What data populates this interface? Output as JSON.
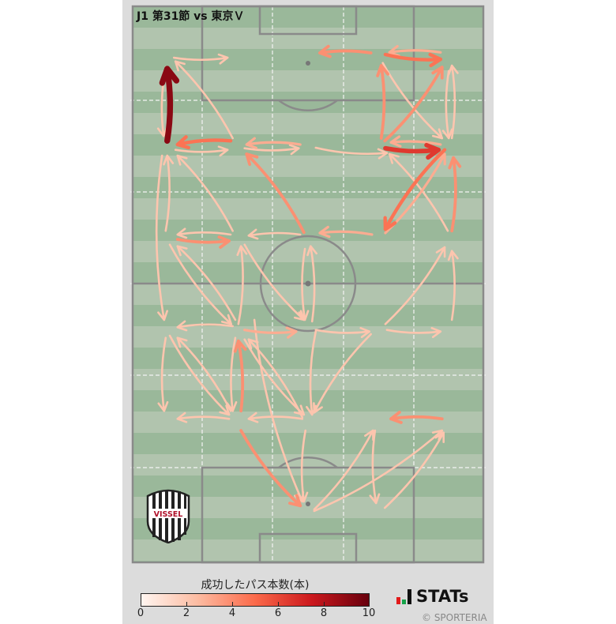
{
  "title": "J1 第31節 vs 東京Ｖ",
  "legend": {
    "title": "成功したパス本数(本)",
    "ticks": [
      "0",
      "2",
      "4",
      "6",
      "8",
      "10"
    ]
  },
  "branding": {
    "stats": "STATs",
    "copyright": "© SPORTERIA",
    "club_logo_text": "VISSEL"
  },
  "colors": {
    "scale": [
      "#fff5f0",
      "#fcbba1",
      "#fb6a4a",
      "#cb181d",
      "#67000d"
    ],
    "pitch_dark": "#9ab89a",
    "pitch_light": "#b1c4ae",
    "lines": "#888888"
  },
  "chart_data": {
    "type": "pass-map",
    "pitch_m": [
      68,
      105
    ],
    "color_range": [
      0,
      10
    ],
    "colorbar_label": "成功したパス本数(本)",
    "passes": [
      {
        "from": [
          8.0,
          9.7
        ],
        "to": [
          18.4,
          9.7
        ],
        "count": 1
      },
      {
        "from": [
          6.7,
          25.4
        ],
        "to": [
          6.7,
          11.8
        ],
        "count": 9
      },
      {
        "from": [
          6.4,
          11.5
        ],
        "to": [
          6.0,
          24.5
        ],
        "count": 1
      },
      {
        "from": [
          19.0,
          25.4
        ],
        "to": [
          8.7,
          26.1
        ],
        "count": 4
      },
      {
        "from": [
          8.3,
          27.1
        ],
        "to": [
          18.4,
          27.1
        ],
        "count": 1
      },
      {
        "from": [
          32.5,
          26.1
        ],
        "to": [
          22.1,
          26.1
        ],
        "count": 2
      },
      {
        "from": [
          21.7,
          26.8
        ],
        "to": [
          32.2,
          26.8
        ],
        "count": 1
      },
      {
        "from": [
          19.4,
          24.9
        ],
        "to": [
          8.3,
          10.4
        ],
        "count": 1
      },
      {
        "from": [
          46.2,
          8.8
        ],
        "to": [
          36.3,
          8.8
        ],
        "count": 3
      },
      {
        "from": [
          49.0,
          9.1
        ],
        "to": [
          59.7,
          10.0
        ],
        "count": 4
      },
      {
        "from": [
          59.7,
          8.7
        ],
        "to": [
          49.8,
          8.7
        ],
        "count": 2
      },
      {
        "from": [
          48.2,
          24.9
        ],
        "to": [
          48.2,
          11.2
        ],
        "count": 3
      },
      {
        "from": [
          48.5,
          10.7
        ],
        "to": [
          60.0,
          24.9
        ],
        "count": 1
      },
      {
        "from": [
          48.9,
          25.4
        ],
        "to": [
          60.0,
          11.5
        ],
        "count": 3
      },
      {
        "from": [
          61.3,
          12.2
        ],
        "to": [
          61.3,
          24.9
        ],
        "count": 1
      },
      {
        "from": [
          61.9,
          24.9
        ],
        "to": [
          61.9,
          11.2
        ],
        "count": 1
      },
      {
        "from": [
          49.0,
          26.8
        ],
        "to": [
          59.3,
          27.1
        ],
        "count": 6
      },
      {
        "from": [
          59.7,
          26.1
        ],
        "to": [
          50.1,
          25.7
        ],
        "count": 2
      },
      {
        "from": [
          35.5,
          26.7
        ],
        "to": [
          49.3,
          27.7
        ],
        "count": 1
      },
      {
        "from": [
          60.5,
          27.1
        ],
        "to": [
          49.0,
          42.1
        ],
        "count": 4
      },
      {
        "from": [
          49.0,
          42.8
        ],
        "to": [
          60.5,
          27.9
        ],
        "count": 2
      },
      {
        "from": [
          61.1,
          42.4
        ],
        "to": [
          49.8,
          27.9
        ],
        "count": 1
      },
      {
        "from": [
          61.9,
          42.4
        ],
        "to": [
          62.2,
          28.6
        ],
        "count": 3
      },
      {
        "from": [
          33.2,
          42.7
        ],
        "to": [
          22.1,
          27.9
        ],
        "count": 3
      },
      {
        "from": [
          46.4,
          43.1
        ],
        "to": [
          36.3,
          42.8
        ],
        "count": 2
      },
      {
        "from": [
          32.5,
          43.1
        ],
        "to": [
          22.5,
          43.3
        ],
        "count": 1
      },
      {
        "from": [
          8.7,
          44.0
        ],
        "to": [
          18.7,
          44.3
        ],
        "count": 3
      },
      {
        "from": [
          19.0,
          43.1
        ],
        "to": [
          8.7,
          43.1
        ],
        "count": 1
      },
      {
        "from": [
          19.4,
          42.4
        ],
        "to": [
          8.7,
          28.2
        ],
        "count": 1
      },
      {
        "from": [
          6.4,
          42.4
        ],
        "to": [
          6.7,
          28.2
        ],
        "count": 1
      },
      {
        "from": [
          5.7,
          28.2
        ],
        "to": [
          6.1,
          59.2
        ],
        "count": 1
      },
      {
        "from": [
          7.2,
          45.0
        ],
        "to": [
          19.1,
          60.0
        ],
        "count": 1
      },
      {
        "from": [
          19.9,
          59.2
        ],
        "to": [
          8.7,
          45.3
        ],
        "count": 1
      },
      {
        "from": [
          20.5,
          60.0
        ],
        "to": [
          21.0,
          45.3
        ],
        "count": 1
      },
      {
        "from": [
          21.7,
          45.0
        ],
        "to": [
          33.2,
          59.2
        ],
        "count": 1
      },
      {
        "from": [
          34.8,
          59.5
        ],
        "to": [
          34.5,
          45.3
        ],
        "count": 1
      },
      {
        "from": [
          33.4,
          45.8
        ],
        "to": [
          33.4,
          59.2
        ],
        "count": 1
      },
      {
        "from": [
          49.0,
          60.0
        ],
        "to": [
          60.5,
          45.5
        ],
        "count": 1
      },
      {
        "from": [
          61.9,
          59.2
        ],
        "to": [
          61.9,
          46.2
        ],
        "count": 1
      },
      {
        "from": [
          19.4,
          60.4
        ],
        "to": [
          8.7,
          60.6
        ],
        "count": 1
      },
      {
        "from": [
          21.7,
          61.1
        ],
        "to": [
          31.7,
          61.4
        ],
        "count": 2
      },
      {
        "from": [
          35.5,
          61.1
        ],
        "to": [
          45.9,
          61.4
        ],
        "count": 1
      },
      {
        "from": [
          49.3,
          61.1
        ],
        "to": [
          59.7,
          61.4
        ],
        "count": 1
      },
      {
        "from": [
          23.6,
          59.2
        ],
        "to": [
          32.9,
          93.5
        ],
        "count": 1
      },
      {
        "from": [
          21.0,
          76.4
        ],
        "to": [
          20.5,
          63.2
        ],
        "count": 3
      },
      {
        "from": [
          19.9,
          62.6
        ],
        "to": [
          19.4,
          76.4
        ],
        "count": 1
      },
      {
        "from": [
          7.2,
          62.2
        ],
        "to": [
          18.7,
          77.1
        ],
        "count": 1
      },
      {
        "from": [
          19.0,
          76.4
        ],
        "to": [
          8.7,
          62.6
        ],
        "count": 1
      },
      {
        "from": [
          6.4,
          62.6
        ],
        "to": [
          6.1,
          76.4
        ],
        "count": 1
      },
      {
        "from": [
          18.7,
          77.9
        ],
        "to": [
          8.7,
          77.9
        ],
        "count": 1
      },
      {
        "from": [
          21.7,
          62.9
        ],
        "to": [
          33.2,
          77.1
        ],
        "count": 1
      },
      {
        "from": [
          32.9,
          77.6
        ],
        "to": [
          22.5,
          62.9
        ],
        "count": 1
      },
      {
        "from": [
          32.9,
          77.9
        ],
        "to": [
          22.5,
          77.9
        ],
        "count": 1
      },
      {
        "from": [
          35.5,
          61.4
        ],
        "to": [
          34.8,
          77.1
        ],
        "count": 1
      },
      {
        "from": [
          46.2,
          61.9
        ],
        "to": [
          35.2,
          76.7
        ],
        "count": 1
      },
      {
        "from": [
          60.0,
          77.9
        ],
        "to": [
          50.1,
          77.9
        ],
        "count": 3
      },
      {
        "from": [
          21.0,
          80.1
        ],
        "to": [
          32.5,
          94.3
        ],
        "count": 3
      },
      {
        "from": [
          33.5,
          80.1
        ],
        "to": [
          33.2,
          93.5
        ],
        "count": 1
      },
      {
        "from": [
          35.2,
          95.0
        ],
        "to": [
          46.6,
          80.1
        ],
        "count": 1
      },
      {
        "from": [
          35.2,
          95.3
        ],
        "to": [
          60.0,
          80.1
        ],
        "count": 1
      },
      {
        "from": [
          47.0,
          80.1
        ],
        "to": [
          47.2,
          93.8
        ],
        "count": 1
      },
      {
        "from": [
          48.9,
          94.7
        ],
        "to": [
          60.3,
          80.5
        ],
        "count": 1
      }
    ]
  }
}
